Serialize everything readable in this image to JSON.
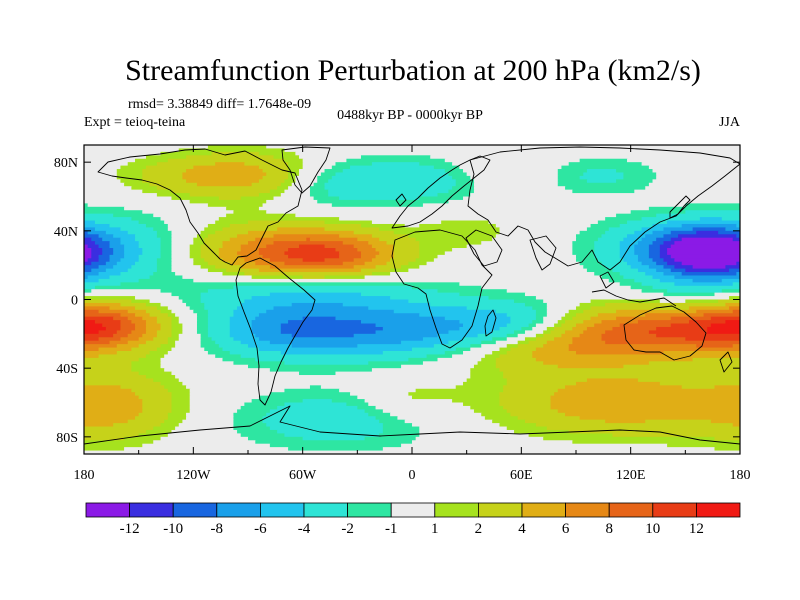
{
  "chart_data": {
    "type": "heatmap",
    "title": "Streamfunction Perturbation at 200 hPa (km2/s)",
    "stats_text": "rmsd= 3.38849 diff= 1.7648e-09",
    "experiment_text": "Expt = teioq-teina",
    "period_text": "0488kyr BP - 0000kyr BP",
    "season_text": "JJA",
    "x_range": [
      -180,
      180
    ],
    "y_range": [
      -90,
      90
    ],
    "x_ticks": [
      {
        "value": -180,
        "label": "180"
      },
      {
        "value": -120,
        "label": "120W"
      },
      {
        "value": -60,
        "label": "60W"
      },
      {
        "value": 0,
        "label": "0"
      },
      {
        "value": 60,
        "label": "60E"
      },
      {
        "value": 120,
        "label": "120E"
      },
      {
        "value": 180,
        "label": "180"
      }
    ],
    "y_ticks": [
      {
        "value": 80,
        "label": "80N"
      },
      {
        "value": 40,
        "label": "40N"
      },
      {
        "value": 0,
        "label": "0"
      },
      {
        "value": -40,
        "label": "40S"
      },
      {
        "value": -80,
        "label": "80S"
      }
    ],
    "colorbar_labels": [
      "-12",
      "-10",
      "-8",
      "-6",
      "-4",
      "-2",
      "-1",
      "1",
      "2",
      "4",
      "6",
      "8",
      "10",
      "12"
    ],
    "colorbar_colors": [
      "#8b1ae6",
      "#3a2ee0",
      "#1866e0",
      "#1aa0ea",
      "#22c4ee",
      "#2ee4d6",
      "#2ee6a2",
      "#ececec",
      "#a6e21e",
      "#c6d21a",
      "#e0ae16",
      "#e68816",
      "#e66418",
      "#e83c16",
      "#f01a14"
    ],
    "anomalies": [
      {
        "lon": 163,
        "lat": 27,
        "sx": 22,
        "sy": 11,
        "amp": -13
      },
      {
        "lon": 135,
        "lat": 30,
        "sx": 28,
        "sy": 12,
        "amp": -4
      },
      {
        "lon": -62,
        "lat": 5,
        "sx": 48,
        "sy": 10,
        "amp": -4
      },
      {
        "lon": -75,
        "lat": -18,
        "sx": 28,
        "sy": 11,
        "amp": -5
      },
      {
        "lon": -30,
        "lat": -18,
        "sx": 35,
        "sy": 12,
        "amp": -5.5
      },
      {
        "lon": 25,
        "lat": -18,
        "sx": 35,
        "sy": 11,
        "amp": -4.5
      },
      {
        "lon": 60,
        "lat": -15,
        "sx": 25,
        "sy": 10,
        "amp": -3.5
      },
      {
        "lon": -160,
        "lat": 30,
        "sx": 28,
        "sy": 14,
        "amp": -3.5
      },
      {
        "lon": -40,
        "lat": 67,
        "sx": 30,
        "sy": 10,
        "amp": -3
      },
      {
        "lon": 10,
        "lat": 70,
        "sx": 30,
        "sy": 9,
        "amp": -3
      },
      {
        "lon": 100,
        "lat": 72,
        "sx": 25,
        "sy": 8,
        "amp": -2.5
      },
      {
        "lon": 150,
        "lat": 0,
        "sx": 25,
        "sy": 9,
        "amp": -2
      },
      {
        "lon": -40,
        "lat": -70,
        "sx": 40,
        "sy": 12,
        "amp": -3.5
      },
      {
        "lon": 165,
        "lat": -60,
        "sx": 25,
        "sy": 12,
        "amp": -2.5
      },
      {
        "lon": -45,
        "lat": 26,
        "sx": 28,
        "sy": 10,
        "amp": 9
      },
      {
        "lon": -85,
        "lat": 27,
        "sx": 30,
        "sy": 12,
        "amp": 5
      },
      {
        "lon": -90,
        "lat": 72,
        "sx": 28,
        "sy": 10,
        "amp": 5
      },
      {
        "lon": -172,
        "lat": -15,
        "sx": 25,
        "sy": 10,
        "amp": 9
      },
      {
        "lon": 135,
        "lat": -18,
        "sx": 40,
        "sy": 11,
        "amp": 9
      },
      {
        "lon": 70,
        "lat": -28,
        "sx": 35,
        "sy": 10,
        "amp": 5
      },
      {
        "lon": 120,
        "lat": -60,
        "sx": 50,
        "sy": 13,
        "amp": 6
      },
      {
        "lon": -172,
        "lat": -62,
        "sx": 28,
        "sy": 14,
        "amp": 5
      },
      {
        "lon": 50,
        "lat": 73,
        "sx": 25,
        "sy": 8,
        "amp": 2
      },
      {
        "lon": -130,
        "lat": 72,
        "sx": 25,
        "sy": 8,
        "amp": 2
      },
      {
        "lon": 30,
        "lat": 40,
        "sx": 20,
        "sy": 8,
        "amp": 1.5
      },
      {
        "lon": -5,
        "lat": -60,
        "sx": 20,
        "sy": 10,
        "amp": 2
      }
    ]
  }
}
